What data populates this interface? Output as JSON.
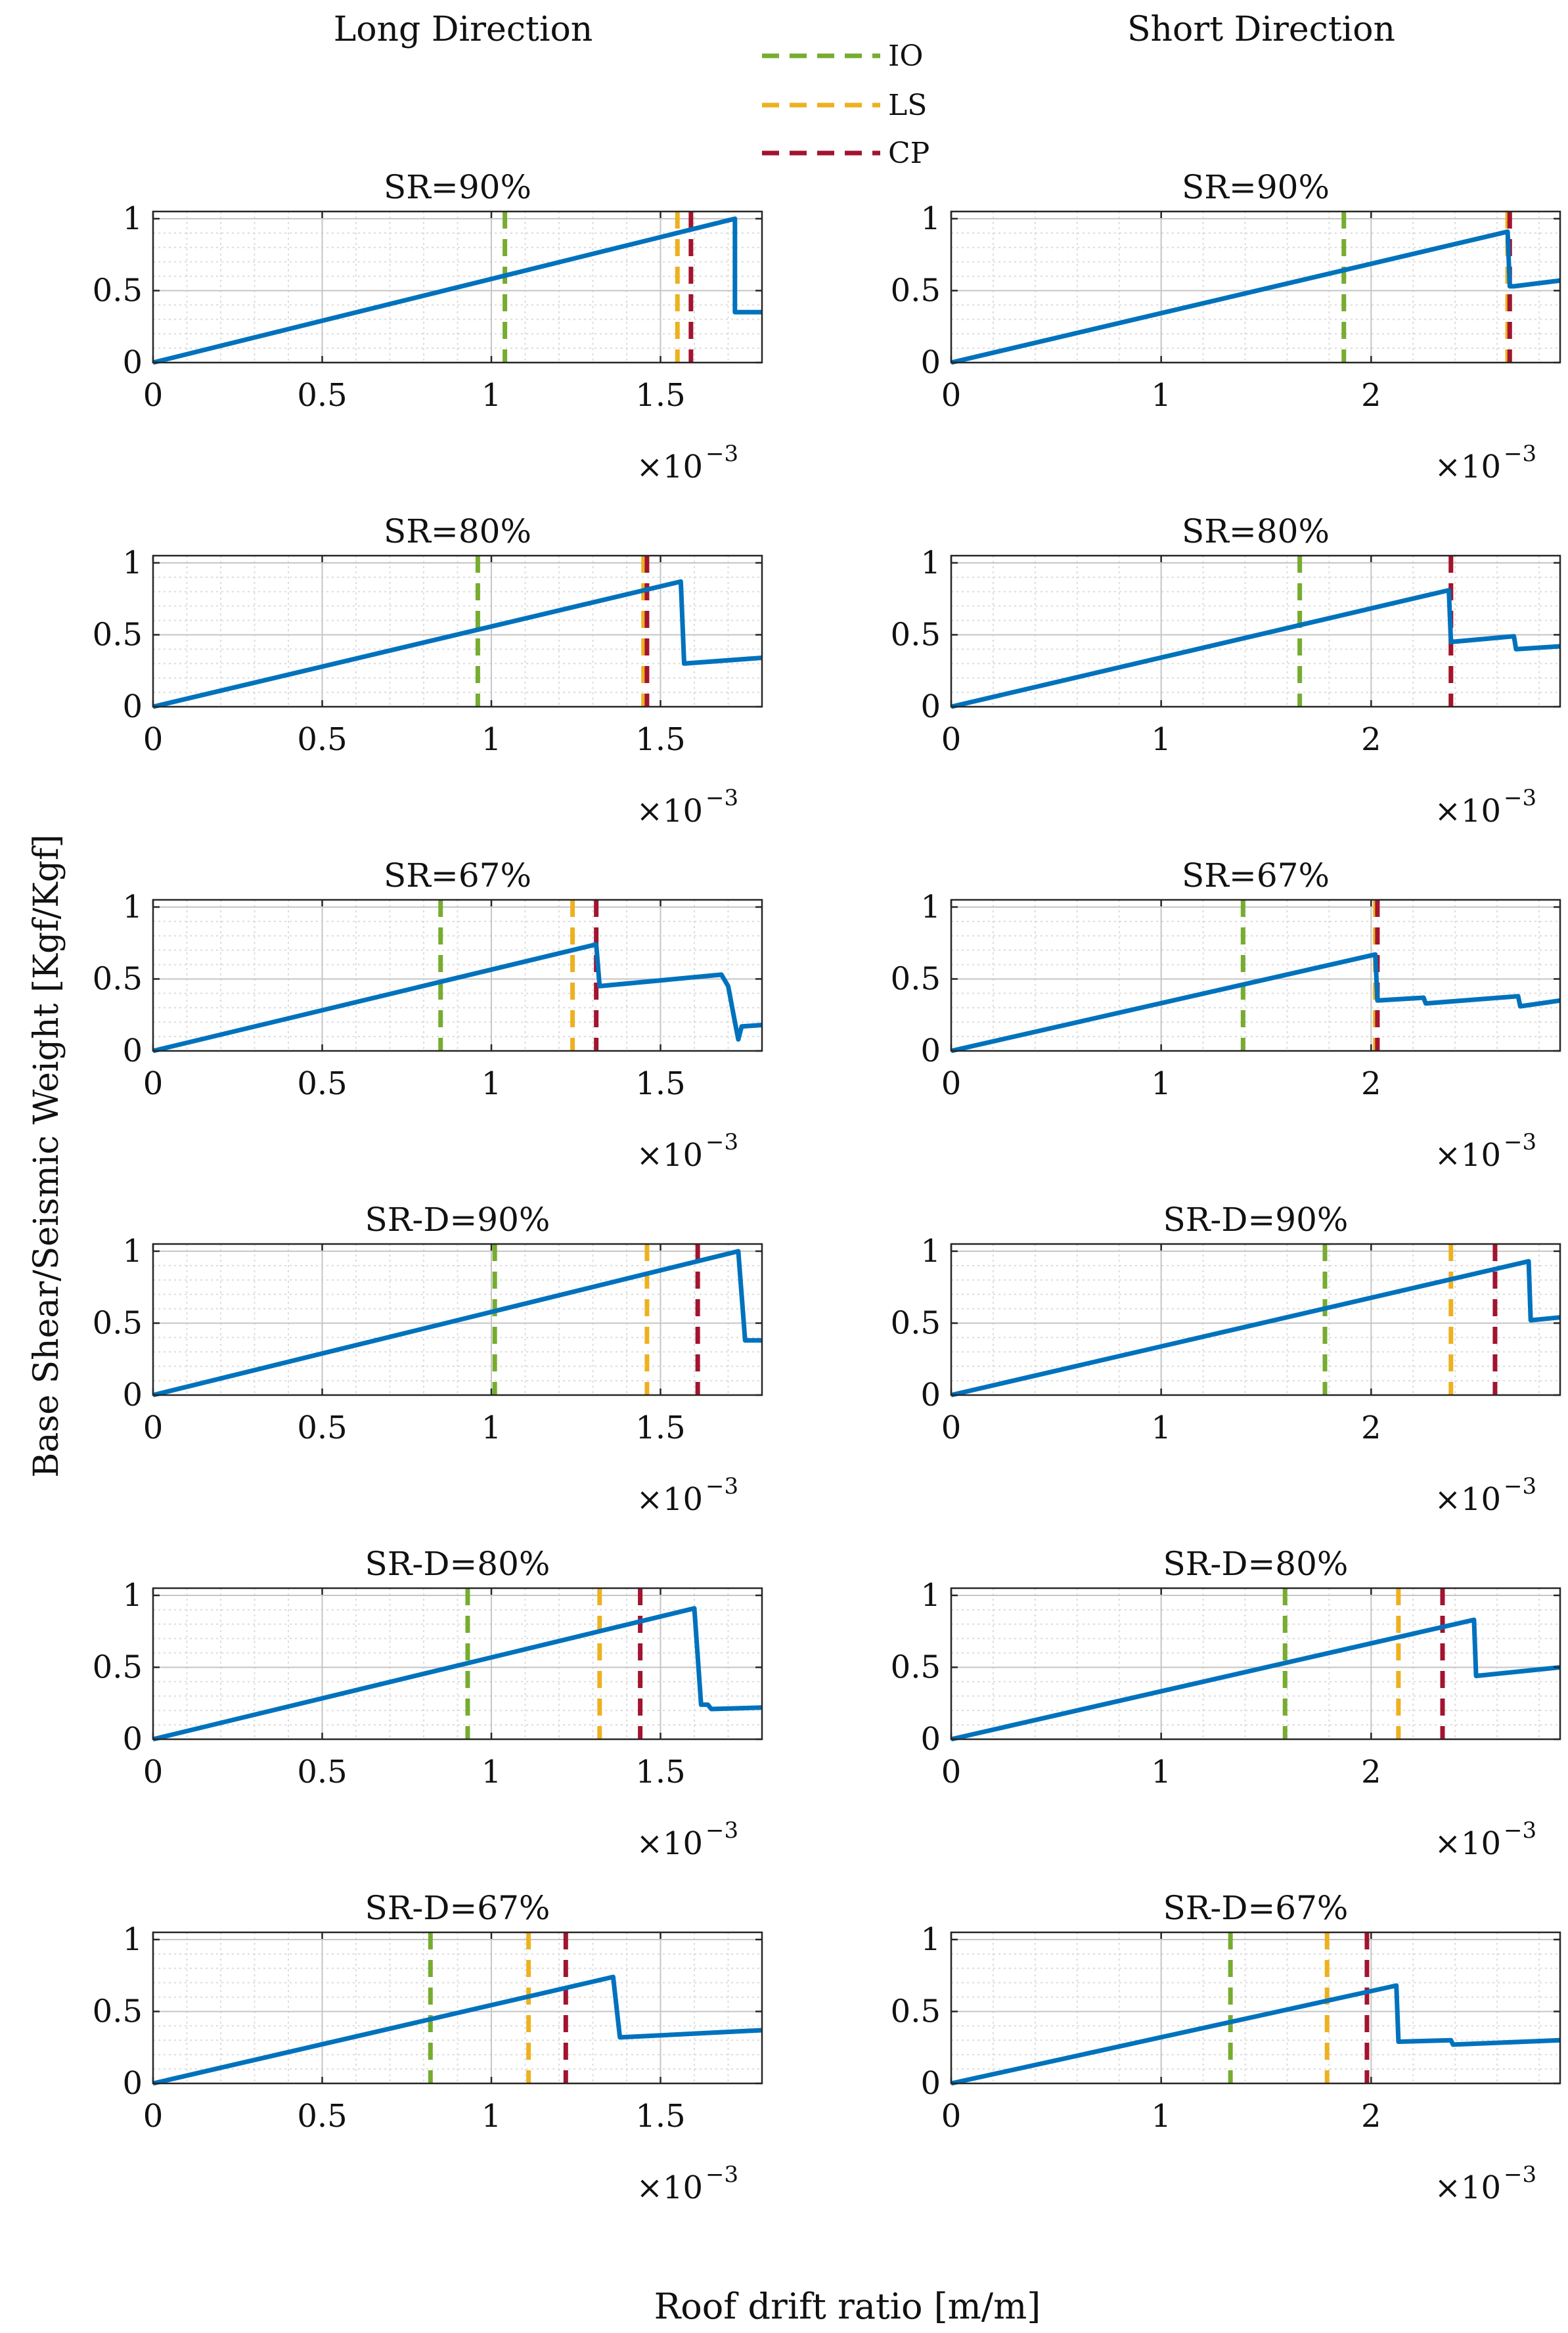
{
  "figure": {
    "col_titles": [
      "Long Direction",
      "Short Direction"
    ],
    "ylabel": "Base Shear/Seismic Weight [Kgf/Kgf]",
    "xlabel": "Roof drift ratio [m/m]",
    "x_multiplier": "×10",
    "x_multiplier_exp": "−3",
    "legend": [
      {
        "label": "IO",
        "color": "#77AC30"
      },
      {
        "label": "LS",
        "color": "#EDB120"
      },
      {
        "label": "CP",
        "color": "#A2142F"
      }
    ],
    "curve_color": "#0072BD"
  },
  "chart_data": [
    {
      "type": "line",
      "title": "SR=90%",
      "direction": "Long Direction",
      "xlim": [
        0,
        1.8
      ],
      "ylim": [
        0,
        1.05
      ],
      "xticks": [
        0,
        0.5,
        1,
        1.5
      ],
      "yticks": [
        0,
        0.5,
        1
      ],
      "x_scale": "1e-3",
      "limits": {
        "IO": 1.04,
        "LS": 1.55,
        "CP": 1.59
      },
      "series": [
        {
          "name": "pushover",
          "x": [
            0,
            1.72,
            1.72,
            1.73,
            1.8
          ],
          "y": [
            0,
            1.0,
            0.35,
            0.35,
            0.35
          ]
        }
      ]
    },
    {
      "type": "line",
      "title": "SR=90%",
      "direction": "Short Direction",
      "xlim": [
        0,
        2.9
      ],
      "ylim": [
        0,
        1.05
      ],
      "xticks": [
        0,
        1,
        2
      ],
      "yticks": [
        0,
        0.5,
        1
      ],
      "x_scale": "1e-3",
      "limits": {
        "IO": 1.87,
        "LS": 2.65,
        "CP": 2.66
      },
      "series": [
        {
          "name": "pushover",
          "x": [
            0,
            2.65,
            2.66,
            2.68,
            2.9
          ],
          "y": [
            0,
            0.91,
            0.53,
            0.53,
            0.57
          ]
        }
      ]
    },
    {
      "type": "line",
      "title": "SR=80%",
      "direction": "Long Direction",
      "xlim": [
        0,
        1.8
      ],
      "ylim": [
        0,
        1.05
      ],
      "xticks": [
        0,
        0.5,
        1,
        1.5
      ],
      "yticks": [
        0,
        0.5,
        1
      ],
      "x_scale": "1e-3",
      "limits": {
        "IO": 0.96,
        "LS": 1.45,
        "CP": 1.46
      },
      "series": [
        {
          "name": "pushover",
          "x": [
            0,
            1.56,
            1.57,
            1.8
          ],
          "y": [
            0,
            0.87,
            0.3,
            0.34
          ]
        }
      ]
    },
    {
      "type": "line",
      "title": "SR=80%",
      "direction": "Short Direction",
      "xlim": [
        0,
        2.9
      ],
      "ylim": [
        0,
        1.05
      ],
      "xticks": [
        0,
        1,
        2
      ],
      "yticks": [
        0,
        0.5,
        1
      ],
      "x_scale": "1e-3",
      "limits": {
        "IO": 1.66,
        "LS": 2.38,
        "CP": 2.38
      },
      "series": [
        {
          "name": "pushover",
          "x": [
            0,
            2.37,
            2.38,
            2.68,
            2.69,
            2.9
          ],
          "y": [
            0,
            0.81,
            0.45,
            0.49,
            0.4,
            0.42
          ]
        }
      ]
    },
    {
      "type": "line",
      "title": "SR=67%",
      "direction": "Long Direction",
      "xlim": [
        0,
        1.8
      ],
      "ylim": [
        0,
        1.05
      ],
      "xticks": [
        0,
        0.5,
        1,
        1.5
      ],
      "yticks": [
        0,
        0.5,
        1
      ],
      "x_scale": "1e-3",
      "limits": {
        "IO": 0.85,
        "LS": 1.24,
        "CP": 1.31
      },
      "series": [
        {
          "name": "pushover",
          "x": [
            0,
            1.31,
            1.32,
            1.68,
            1.7,
            1.72,
            1.73,
            1.74,
            1.8
          ],
          "y": [
            0,
            0.74,
            0.45,
            0.53,
            0.45,
            0.2,
            0.08,
            0.17,
            0.18
          ]
        }
      ]
    },
    {
      "type": "line",
      "title": "SR=67%",
      "direction": "Short Direction",
      "xlim": [
        0,
        2.9
      ],
      "ylim": [
        0,
        1.05
      ],
      "xticks": [
        0,
        1,
        2
      ],
      "yticks": [
        0,
        0.5,
        1
      ],
      "x_scale": "1e-3",
      "limits": {
        "IO": 1.39,
        "LS": 2.02,
        "CP": 2.03
      },
      "series": [
        {
          "name": "pushover",
          "x": [
            0,
            2.02,
            2.03,
            2.25,
            2.26,
            2.7,
            2.71,
            2.9
          ],
          "y": [
            0,
            0.67,
            0.35,
            0.37,
            0.33,
            0.38,
            0.31,
            0.35
          ]
        }
      ]
    },
    {
      "type": "line",
      "title": "SR-D=90%",
      "direction": "Long Direction",
      "xlim": [
        0,
        1.8
      ],
      "ylim": [
        0,
        1.05
      ],
      "xticks": [
        0,
        0.5,
        1,
        1.5
      ],
      "yticks": [
        0,
        0.5,
        1
      ],
      "x_scale": "1e-3",
      "limits": {
        "IO": 1.01,
        "LS": 1.46,
        "CP": 1.61
      },
      "series": [
        {
          "name": "pushover",
          "x": [
            0,
            1.73,
            1.75,
            1.76,
            1.8
          ],
          "y": [
            0,
            1.0,
            0.38,
            0.38,
            0.38
          ]
        }
      ]
    },
    {
      "type": "line",
      "title": "SR-D=90%",
      "direction": "Short Direction",
      "xlim": [
        0,
        2.9
      ],
      "ylim": [
        0,
        1.05
      ],
      "xticks": [
        0,
        1,
        2
      ],
      "yticks": [
        0,
        0.5,
        1
      ],
      "x_scale": "1e-3",
      "limits": {
        "IO": 1.78,
        "LS": 2.38,
        "CP": 2.59
      },
      "series": [
        {
          "name": "pushover",
          "x": [
            0,
            2.75,
            2.76,
            2.9
          ],
          "y": [
            0,
            0.93,
            0.52,
            0.54
          ]
        }
      ]
    },
    {
      "type": "line",
      "title": "SR-D=80%",
      "direction": "Long Direction",
      "xlim": [
        0,
        1.8
      ],
      "ylim": [
        0,
        1.05
      ],
      "xticks": [
        0,
        0.5,
        1,
        1.5
      ],
      "yticks": [
        0,
        0.5,
        1
      ],
      "x_scale": "1e-3",
      "limits": {
        "IO": 0.93,
        "LS": 1.32,
        "CP": 1.44
      },
      "series": [
        {
          "name": "pushover",
          "x": [
            0,
            1.6,
            1.62,
            1.64,
            1.65,
            1.8
          ],
          "y": [
            0,
            0.91,
            0.24,
            0.24,
            0.21,
            0.22
          ]
        }
      ]
    },
    {
      "type": "line",
      "title": "SR-D=80%",
      "direction": "Short Direction",
      "xlim": [
        0,
        2.9
      ],
      "ylim": [
        0,
        1.05
      ],
      "xticks": [
        0,
        1,
        2
      ],
      "yticks": [
        0,
        0.5,
        1
      ],
      "x_scale": "1e-3",
      "limits": {
        "IO": 1.59,
        "LS": 2.13,
        "CP": 2.34
      },
      "series": [
        {
          "name": "pushover",
          "x": [
            0,
            2.49,
            2.5,
            2.9
          ],
          "y": [
            0,
            0.83,
            0.44,
            0.5
          ]
        }
      ]
    },
    {
      "type": "line",
      "title": "SR-D=67%",
      "direction": "Long Direction",
      "xlim": [
        0,
        1.8
      ],
      "ylim": [
        0,
        1.05
      ],
      "xticks": [
        0,
        0.5,
        1,
        1.5
      ],
      "yticks": [
        0,
        0.5,
        1
      ],
      "x_scale": "1e-3",
      "limits": {
        "IO": 0.82,
        "LS": 1.11,
        "CP": 1.22
      },
      "series": [
        {
          "name": "pushover",
          "x": [
            0,
            1.36,
            1.38,
            1.8
          ],
          "y": [
            0,
            0.74,
            0.32,
            0.37
          ]
        }
      ]
    },
    {
      "type": "line",
      "title": "SR-D=67%",
      "direction": "Short Direction",
      "xlim": [
        0,
        2.9
      ],
      "ylim": [
        0,
        1.05
      ],
      "xticks": [
        0,
        1,
        2
      ],
      "yticks": [
        0,
        0.5,
        1
      ],
      "x_scale": "1e-3",
      "limits": {
        "IO": 1.33,
        "LS": 1.79,
        "CP": 1.98
      },
      "series": [
        {
          "name": "pushover",
          "x": [
            0,
            2.12,
            2.13,
            2.38,
            2.39,
            2.9
          ],
          "y": [
            0,
            0.68,
            0.29,
            0.3,
            0.27,
            0.3
          ]
        }
      ]
    }
  ]
}
